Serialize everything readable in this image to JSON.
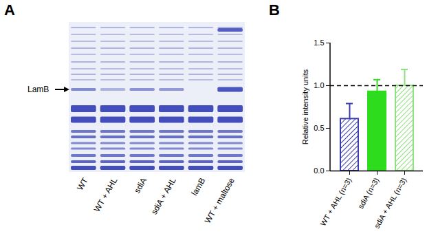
{
  "figure": {
    "panel_a": {
      "label": "A",
      "annotation": "LamB",
      "lanes": [
        "WT",
        "WT + AHL",
        "sdiA",
        "sdiA + AHL",
        "lamB",
        "WT + maltose"
      ]
    }
  },
  "chart_data": {
    "type": "bar",
    "panel_label": "B",
    "ylabel": "Relative intensity units",
    "categories": [
      "WT + AHL (n=3)",
      "sdiA (n=3)",
      "sdiA + AHL (n=3)"
    ],
    "values": [
      0.61,
      0.93,
      1.0
    ],
    "errors": [
      0.18,
      0.14,
      0.19
    ],
    "colors": [
      "#3b3bb0",
      "#2edc1e",
      "#8ee07e"
    ],
    "ylim": [
      0,
      1.5
    ],
    "yticks": [
      {
        "value": 0,
        "label": "0.0"
      },
      {
        "value": 0.5,
        "label": "0.5"
      },
      {
        "value": 1,
        "label": "1.0"
      },
      {
        "value": 1.5,
        "label": "1.5"
      }
    ],
    "reference_line": 1
  }
}
